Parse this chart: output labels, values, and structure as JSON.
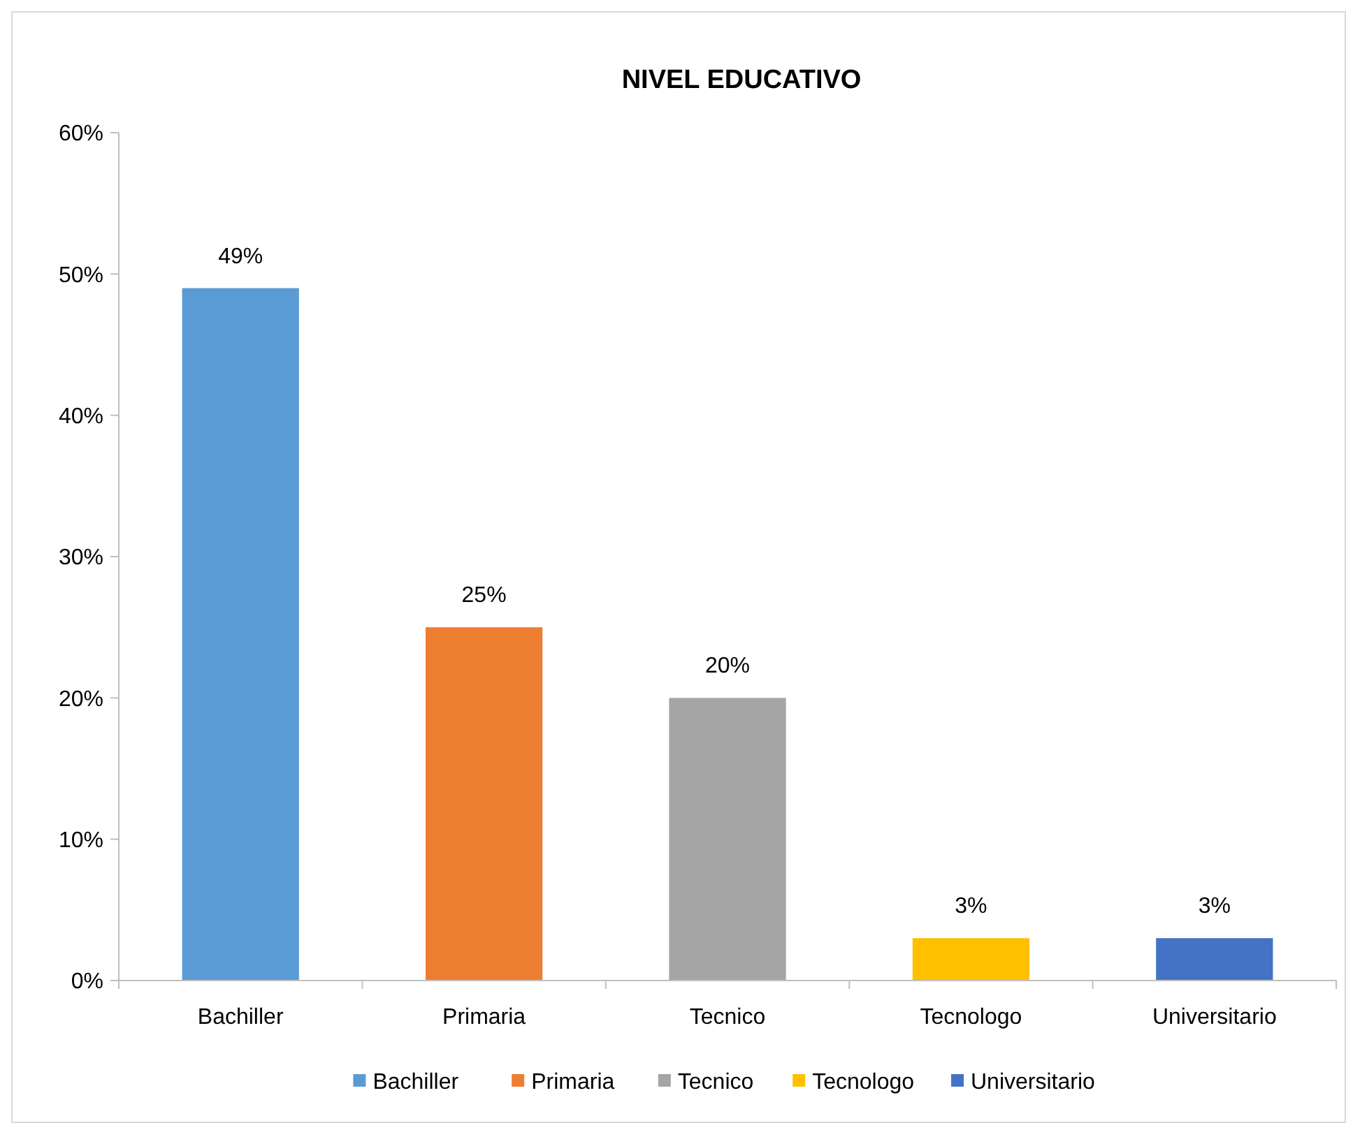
{
  "chart_data": {
    "type": "bar",
    "title": "NIVEL EDUCATIVO",
    "categories": [
      "Bachiller",
      "Primaria",
      "Tecnico",
      "Tecnologo",
      "Universitario"
    ],
    "stacked": true,
    "series": [
      {
        "name": "Bachiller",
        "color": "#5b9bd5",
        "values": [
          49,
          null,
          null,
          null,
          null
        ],
        "value_labels": [
          "49%",
          null,
          null,
          null,
          null
        ]
      },
      {
        "name": "Primaria",
        "color": "#ed7d31",
        "values": [
          null,
          25,
          null,
          null,
          null
        ],
        "value_labels": [
          null,
          "25%",
          null,
          null,
          null
        ]
      },
      {
        "name": "Tecnico",
        "color": "#a5a5a5",
        "values": [
          null,
          null,
          20,
          null,
          null
        ],
        "value_labels": [
          null,
          null,
          "20%",
          null,
          null
        ]
      },
      {
        "name": "Tecnologo",
        "color": "#ffc000",
        "values": [
          null,
          null,
          null,
          3,
          null
        ],
        "value_labels": [
          null,
          null,
          null,
          "3%",
          null
        ]
      },
      {
        "name": "Universitario",
        "color": "#4472c4",
        "values": [
          null,
          null,
          null,
          null,
          3
        ],
        "value_labels": [
          null,
          null,
          null,
          null,
          "3%"
        ]
      }
    ],
    "ylim": [
      0,
      60
    ],
    "yticks": [
      {
        "value": 0,
        "label": "0%"
      },
      {
        "value": 10,
        "label": "10%"
      },
      {
        "value": 20,
        "label": "20%"
      },
      {
        "value": 30,
        "label": "30%"
      },
      {
        "value": 40,
        "label": "40%"
      },
      {
        "value": 50,
        "label": "50%"
      },
      {
        "value": 60,
        "label": "60%"
      }
    ],
    "grid": false,
    "legend": "bottom"
  }
}
